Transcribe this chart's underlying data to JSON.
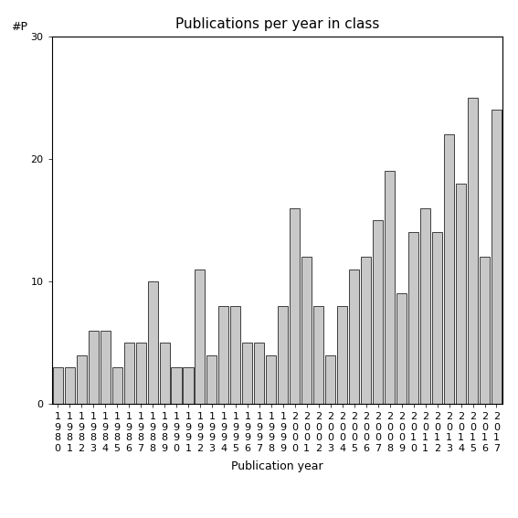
{
  "title": "Publications per year in class",
  "xlabel": "Publication year",
  "ylabel": "#P",
  "years": [
    1980,
    1981,
    1982,
    1983,
    1984,
    1985,
    1986,
    1987,
    1988,
    1989,
    1990,
    1991,
    1992,
    1993,
    1994,
    1995,
    1996,
    1997,
    1998,
    1999,
    2000,
    2001,
    2002,
    2003,
    2004,
    2005,
    2006,
    2007,
    2008,
    2009,
    2010,
    2011,
    2012,
    2013,
    2014,
    2015,
    2016,
    2017
  ],
  "values": [
    3,
    3,
    4,
    6,
    6,
    3,
    5,
    5,
    10,
    5,
    3,
    3,
    11,
    4,
    8,
    8,
    5,
    5,
    4,
    8,
    16,
    12,
    8,
    4,
    8,
    11,
    12,
    15,
    19,
    9,
    14,
    16,
    14,
    22,
    18,
    25,
    12,
    24
  ],
  "bar_color": "#c8c8c8",
  "bar_edgecolor": "#000000",
  "background_color": "#ffffff",
  "ylim": [
    0,
    30
  ],
  "yticks": [
    0,
    10,
    20,
    30
  ],
  "title_fontsize": 11,
  "axis_fontsize": 9,
  "tick_fontsize": 8
}
